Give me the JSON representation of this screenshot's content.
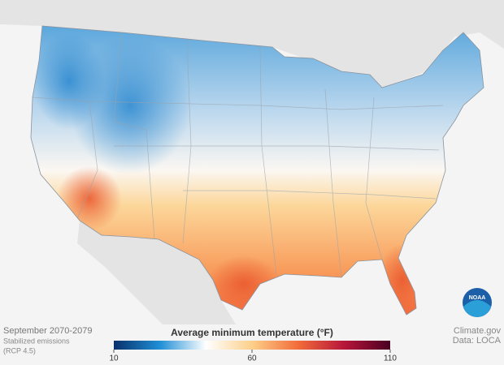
{
  "period": "September 2070-2079",
  "scenario": [
    "Stabilized emissions",
    "(RCP 4.5)"
  ],
  "legend": {
    "title": "Average minimum temperature (°F)",
    "range": [
      10,
      110
    ],
    "ticks": [
      10,
      60,
      110
    ],
    "colors": [
      "#08306b",
      "#1f8fd6",
      "#ffffff",
      "#fdd08a",
      "#f26c3a",
      "#b7163a",
      "#4a0022"
    ]
  },
  "credit": [
    "Climate.gov",
    "Data: LOCA"
  ],
  "logo": "NOAA"
}
